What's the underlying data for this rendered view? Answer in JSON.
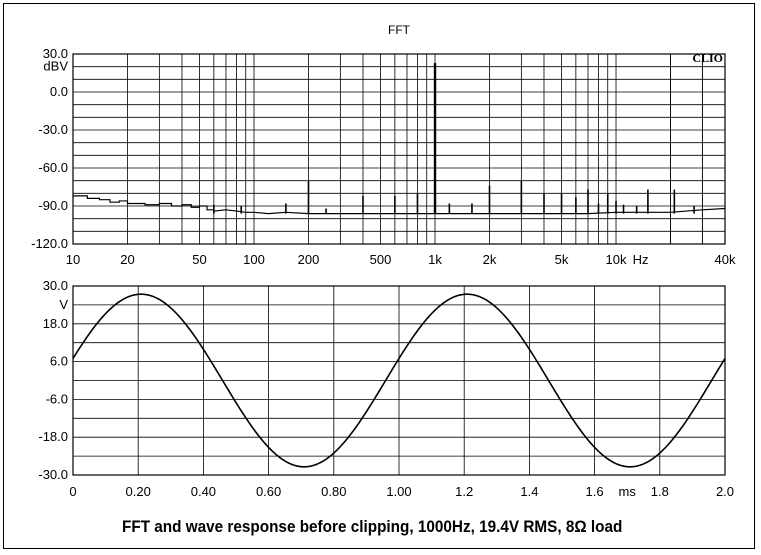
{
  "caption": "FFT and wave response  before  clipping, 1000Hz, 19.4V RMS, 8Ω load",
  "chart_data": [
    {
      "type": "line",
      "title": "FFT",
      "brand": "CLIO",
      "x_scale": "log",
      "xlim": [
        10,
        40000
      ],
      "ylim": [
        -120,
        30
      ],
      "y_unit": "dBV",
      "x_unit": "Hz",
      "x_tick_labels": [
        {
          "v": 10,
          "t": "10"
        },
        {
          "v": 20,
          "t": "20"
        },
        {
          "v": 50,
          "t": "50"
        },
        {
          "v": 100,
          "t": "100"
        },
        {
          "v": 200,
          "t": "200"
        },
        {
          "v": 500,
          "t": "500"
        },
        {
          "v": 1000,
          "t": "1k"
        },
        {
          "v": 2000,
          "t": "2k"
        },
        {
          "v": 5000,
          "t": "5k"
        },
        {
          "v": 10000,
          "t": "10k"
        },
        {
          "v": 40000,
          "t": "40k"
        }
      ],
      "y_tick_labels": [
        {
          "v": 30,
          "t": "30.0"
        },
        {
          "v": 0,
          "t": "0.0"
        },
        {
          "v": -30,
          "t": "-30.0"
        },
        {
          "v": -60,
          "t": "-60.0"
        },
        {
          "v": -90,
          "t": "-90.0"
        },
        {
          "v": -120,
          "t": "-120.0"
        }
      ],
      "noise_floor": [
        [
          10,
          -82
        ],
        [
          12,
          -84
        ],
        [
          14,
          -85
        ],
        [
          16,
          -87
        ],
        [
          18,
          -86
        ],
        [
          20,
          -88
        ],
        [
          25,
          -89
        ],
        [
          30,
          -88
        ],
        [
          35,
          -90
        ],
        [
          40,
          -89
        ],
        [
          45,
          -91
        ],
        [
          50,
          -90
        ],
        [
          55,
          -93
        ],
        [
          60,
          -94
        ],
        [
          70,
          -93
        ],
        [
          80,
          -94
        ],
        [
          90,
          -95
        ],
        [
          100,
          -95
        ],
        [
          120,
          -96
        ],
        [
          150,
          -95
        ],
        [
          200,
          -96
        ],
        [
          300,
          -96
        ],
        [
          500,
          -96
        ],
        [
          700,
          -96
        ],
        [
          1000,
          -96
        ],
        [
          1500,
          -96
        ],
        [
          2000,
          -96
        ],
        [
          3000,
          -96
        ],
        [
          5000,
          -96
        ],
        [
          7000,
          -96
        ],
        [
          10000,
          -95
        ],
        [
          15000,
          -95
        ],
        [
          20000,
          -95
        ],
        [
          30000,
          -93
        ],
        [
          40000,
          -92
        ]
      ],
      "peaks": [
        {
          "f": 60,
          "db": -89
        },
        {
          "f": 85,
          "db": -90
        },
        {
          "f": 150,
          "db": -88
        },
        {
          "f": 200,
          "db": -70
        },
        {
          "f": 250,
          "db": -92
        },
        {
          "f": 400,
          "db": -82
        },
        {
          "f": 600,
          "db": -82
        },
        {
          "f": 800,
          "db": -80
        },
        {
          "f": 1000,
          "db": 22.8
        },
        {
          "f": 1200,
          "db": -88
        },
        {
          "f": 1600,
          "db": -88
        },
        {
          "f": 2000,
          "db": -74
        },
        {
          "f": 3000,
          "db": -70
        },
        {
          "f": 4000,
          "db": -80
        },
        {
          "f": 5000,
          "db": -80
        },
        {
          "f": 6000,
          "db": -83
        },
        {
          "f": 7000,
          "db": -77
        },
        {
          "f": 8000,
          "db": -88
        },
        {
          "f": 9000,
          "db": -80
        },
        {
          "f": 10000,
          "db": -86
        },
        {
          "f": 11000,
          "db": -89
        },
        {
          "f": 13000,
          "db": -90
        },
        {
          "f": 15000,
          "db": -77
        },
        {
          "f": 21000,
          "db": -77
        },
        {
          "f": 27000,
          "db": -90
        }
      ]
    },
    {
      "type": "line",
      "xlim": [
        0,
        2.0
      ],
      "ylim": [
        -30,
        30
      ],
      "y_unit": "V",
      "x_unit": "ms",
      "x_tick_labels": [
        {
          "v": 0,
          "t": "0"
        },
        {
          "v": 0.2,
          "t": "0.20"
        },
        {
          "v": 0.4,
          "t": "0.40"
        },
        {
          "v": 0.6,
          "t": "0.60"
        },
        {
          "v": 0.8,
          "t": "0.80"
        },
        {
          "v": 1.0,
          "t": "1.00"
        },
        {
          "v": 1.2,
          "t": "1.2"
        },
        {
          "v": 1.4,
          "t": "1.4"
        },
        {
          "v": 1.6,
          "t": "1.6"
        },
        {
          "v": 1.8,
          "t": "1.8"
        },
        {
          "v": 2.0,
          "t": "2.0"
        }
      ],
      "y_tick_labels": [
        {
          "v": 30,
          "t": "30.0"
        },
        {
          "v": 18,
          "t": "18.0"
        },
        {
          "v": 6,
          "t": "6.0"
        },
        {
          "v": -6,
          "t": "-6.0"
        },
        {
          "v": -18,
          "t": "-18.0"
        },
        {
          "v": -30,
          "t": "-30.0"
        }
      ],
      "waveform": {
        "amplitude_v": 27.4,
        "frequency_hz": 1000,
        "value_at_zero_v": 7.0
      }
    }
  ]
}
